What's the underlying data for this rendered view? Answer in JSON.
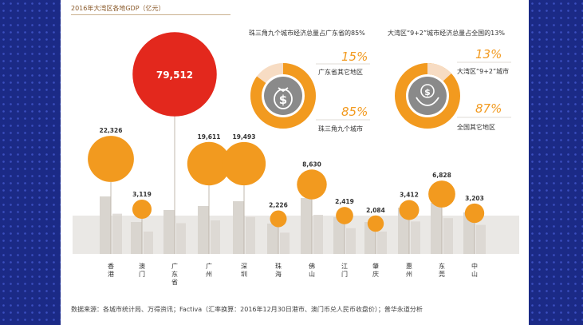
{
  "title": "2016年大湾区各地GDP（亿元）",
  "source": "数据来源：各城市统计局、万得资讯；Factiva（汇率换算：2016年12月30日港市、澳门币兑人民币收盘价）；普华永道分析",
  "donut_left": {
    "heading": "珠三角九个城市经济总量占广东省的85%",
    "pct_small": "15%",
    "label_small": "广东省其它地区",
    "pct_large": "85%",
    "label_large": "珠三角九个城市",
    "icon": "money-bag-icon",
    "share": 0.85
  },
  "donut_right": {
    "heading": "大湾区“9+2”城市经济总量占全国的13%",
    "pct_small": "13%",
    "label_small": "大湾区“9+2”城市",
    "pct_large": "87%",
    "label_large": "全国其它地区",
    "icon": "money-hand-icon",
    "share": 0.13
  },
  "colors": {
    "bubble": "#f29a1f",
    "highlight": "#e3281d",
    "donut_light": "#f7dcc3",
    "accent_text": "#f29a1f",
    "skyline": "#d9d5cf",
    "line": "#c0b8ae"
  },
  "chart_data": {
    "type": "bubble",
    "title": "2016年大湾区各地GDP（亿元）",
    "categories": [
      "香港",
      "澳门",
      "广东省",
      "广州",
      "深圳",
      "珠海",
      "佛山",
      "江门",
      "肇庆",
      "惠州",
      "东莞",
      "中山"
    ],
    "values": [
      22326,
      3119,
      79512,
      19611,
      19493,
      2226,
      8630,
      2419,
      2084,
      3412,
      6828,
      3203
    ],
    "labels": [
      "22,326",
      "3,119",
      "79,512",
      "19,611",
      "19,493",
      "2,226",
      "8,630",
      "2,419",
      "2,084",
      "3,412",
      "6,828",
      "3,203"
    ],
    "highlight_category": "广东省"
  }
}
